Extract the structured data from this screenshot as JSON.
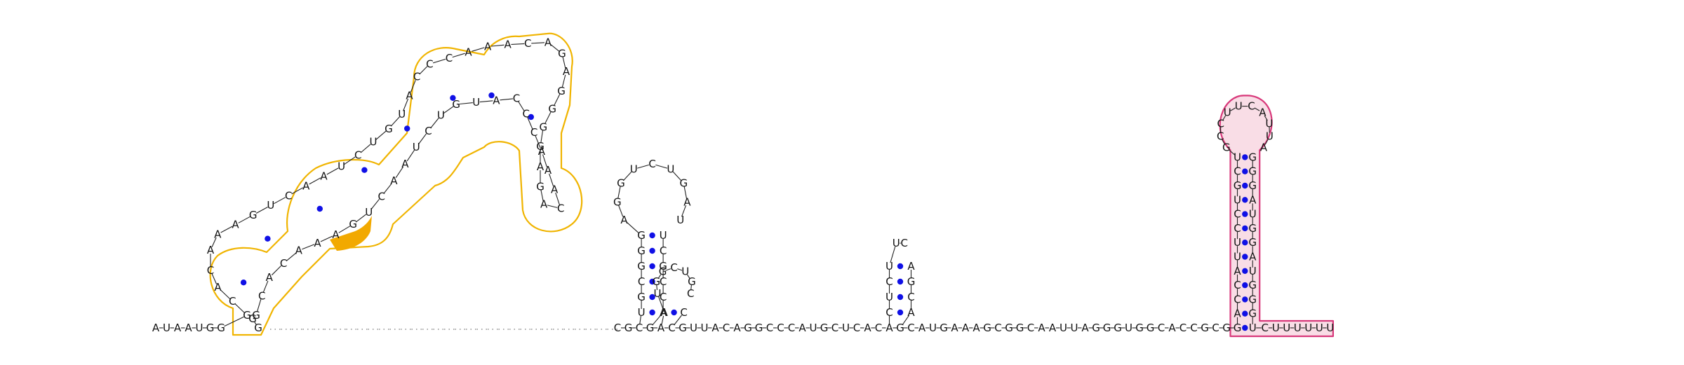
{
  "diagram": {
    "colors": {
      "pair_dot": "#1010e6",
      "highlight_left": "#f0b400",
      "highlight_left_fill": "#f2a900",
      "highlight_right": "#d8387a",
      "highlight_right_fill": "#f9dde6"
    },
    "strand_5prime": "AUAAUGG",
    "hairpin1": {
      "left": "GCACAAAGUCAAUCUGUACCCAAACAGAGG",
      "loop_bottom": "GG"
    },
    "dotted_gap": true,
    "middle_strand": "CGCGACGUUACAGGCCCAUGCUCACAGCAUGAAAGCGG",
    "hairpin2": {
      "left": "UGCGGGAGGUCUGAU",
      "right": "UCGCCA"
    },
    "hairpin3": {
      "left": "AUG",
      "right": "CGCUGC"
    },
    "hairpin4": {
      "left": "CUCUU",
      "right": "ACGAC"
    },
    "strand_3prime": "CAAUUAGGGUGGCACCGCG",
    "terminator": {
      "left": "GACCAUUCCUGCUGCCU",
      "loop": "UCAUUA",
      "right": "GGGAUGGAUGGGU",
      "tail": "CUUUUUU"
    }
  }
}
